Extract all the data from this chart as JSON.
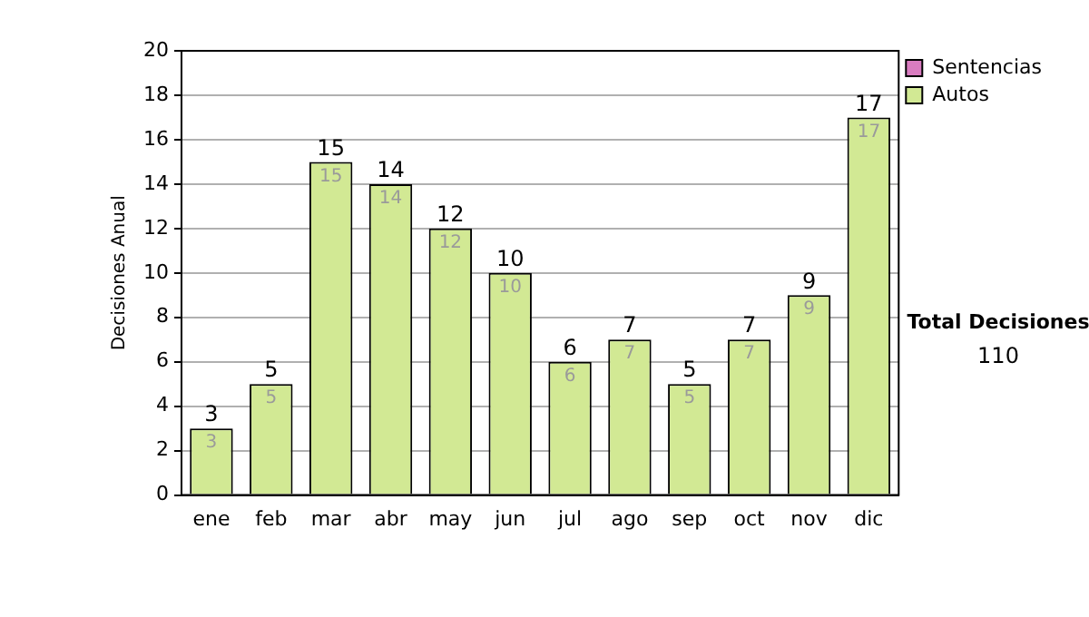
{
  "chart_data": {
    "type": "bar",
    "ylabel": "Decisiones Anual",
    "categories": [
      "ene",
      "feb",
      "mar",
      "abr",
      "may",
      "jun",
      "jul",
      "ago",
      "sep",
      "oct",
      "nov",
      "dic"
    ],
    "series": [
      {
        "name": "Sentencias",
        "color": "#d97cc0",
        "values": [
          0,
          0,
          0,
          0,
          0,
          0,
          0,
          0,
          0,
          0,
          0,
          0
        ]
      },
      {
        "name": "Autos",
        "color": "#d2e994",
        "values": [
          3,
          5,
          15,
          14,
          12,
          10,
          6,
          7,
          5,
          7,
          9,
          17
        ],
        "value_labels": [
          "3",
          "5",
          "15",
          "14",
          "12",
          "10",
          "6",
          "7",
          "5",
          "7",
          "9",
          "17"
        ]
      }
    ],
    "stacked": true,
    "totals": [
      "3",
      "5",
      "15",
      "14",
      "12",
      "10",
      "6",
      "7",
      "5",
      "7",
      "9",
      "17"
    ],
    "ylim": [
      0,
      20
    ],
    "yticks": [
      0,
      2,
      4,
      6,
      8,
      10,
      12,
      14,
      16,
      18,
      20
    ],
    "grid": "y",
    "legend": "right",
    "annotations": [
      "Total Decisiones",
      "110"
    ]
  }
}
